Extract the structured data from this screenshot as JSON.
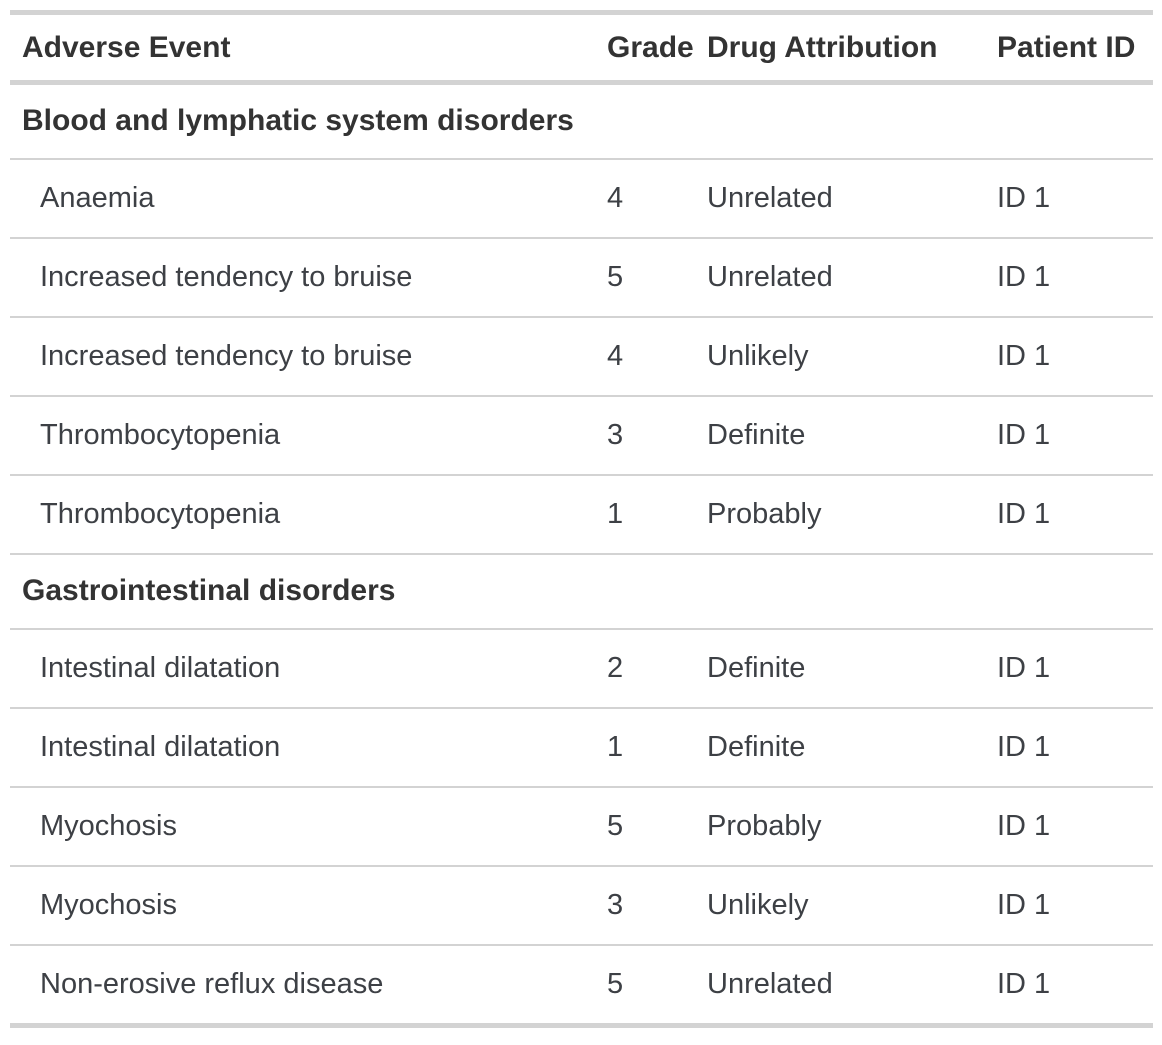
{
  "chart_data": {
    "type": "table",
    "title": "",
    "columns": [
      "Adverse Event",
      "Grade",
      "Drug Attribution",
      "Patient ID"
    ],
    "groups": [
      {
        "label": "Blood and lymphatic system disorders",
        "rows": [
          [
            "Anaemia",
            "4",
            "Unrelated",
            "ID 1"
          ],
          [
            "Increased tendency to bruise",
            "5",
            "Unrelated",
            "ID 1"
          ],
          [
            "Increased tendency to bruise",
            "4",
            "Unlikely",
            "ID 1"
          ],
          [
            "Thrombocytopenia",
            "3",
            "Definite",
            "ID 1"
          ],
          [
            "Thrombocytopenia",
            "1",
            "Probably",
            "ID 1"
          ]
        ]
      },
      {
        "label": "Gastrointestinal disorders",
        "rows": [
          [
            "Intestinal dilatation",
            "2",
            "Definite",
            "ID 1"
          ],
          [
            "Intestinal dilatation",
            "1",
            "Definite",
            "ID 1"
          ],
          [
            "Myochosis",
            "5",
            "Probably",
            "ID 1"
          ],
          [
            "Myochosis",
            "3",
            "Unlikely",
            "ID 1"
          ],
          [
            "Non-erosive reflux disease",
            "5",
            "Unrelated",
            "ID 1"
          ]
        ]
      }
    ],
    "layout": {
      "grid": "horizontal-row-separators-only",
      "header_bold": true,
      "group_headers_bold": true
    }
  },
  "colors": {
    "background": "#ffffff",
    "border": "#d3d3d3",
    "header_text": "#333333",
    "body_text": "#3d4045"
  }
}
